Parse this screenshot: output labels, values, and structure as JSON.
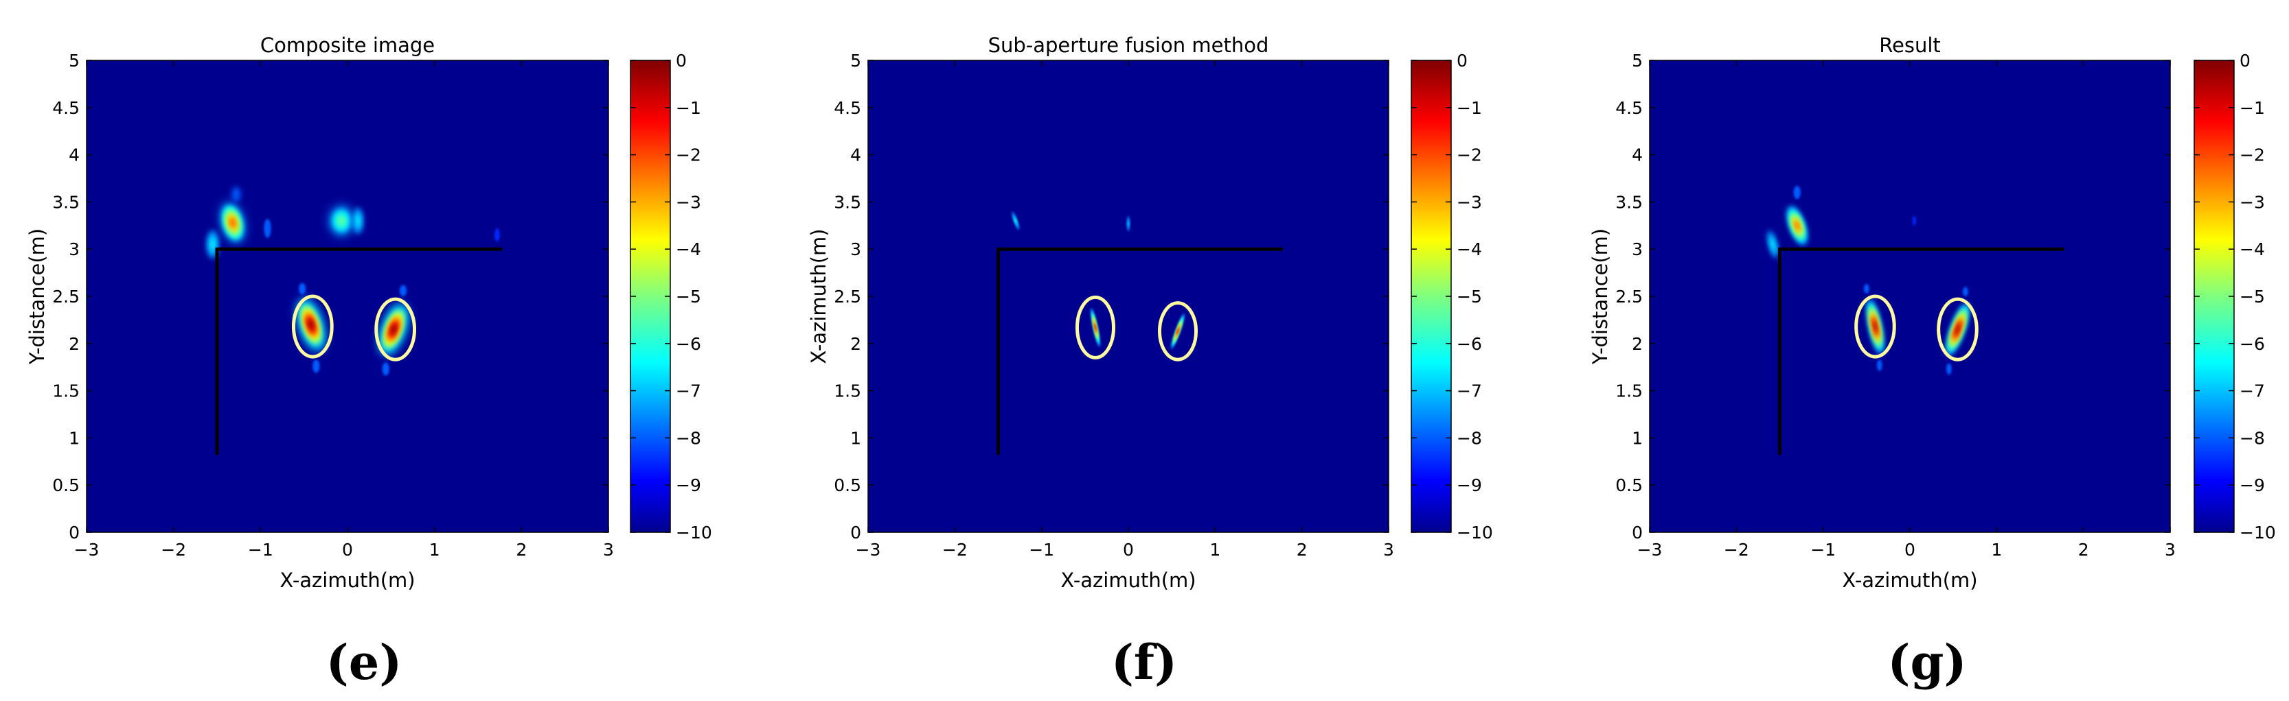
{
  "chart_data": [
    {
      "type": "heatmap",
      "panel_label": "(e)",
      "title": "Composite image",
      "xlabel": "X-azimuth(m)",
      "ylabel": "Y-distance(m)",
      "xlim": [
        -3,
        3
      ],
      "ylim": [
        0,
        5
      ],
      "x_ticks": [
        -3,
        -2,
        -1,
        0,
        1,
        2,
        3
      ],
      "y_ticks": [
        0,
        0.5,
        1,
        1.5,
        2,
        2.5,
        3,
        3.5,
        4,
        4.5,
        5
      ],
      "colorbar": {
        "min": -10,
        "max": 0,
        "ticks": [
          0,
          -1,
          -2,
          -3,
          -4,
          -5,
          -6,
          -7,
          -8,
          -9,
          -10
        ]
      },
      "wall_line": [
        [
          -1.5,
          0.82
        ],
        [
          -1.5,
          3.0
        ],
        [
          1.78,
          3.0
        ]
      ],
      "target_ellipses": [
        {
          "cx": -0.4,
          "cy": 2.18,
          "rx": 0.22,
          "ry": 0.32
        },
        {
          "cx": 0.55,
          "cy": 2.15,
          "rx": 0.22,
          "ry": 0.32
        }
      ],
      "blobs": [
        {
          "x": -1.32,
          "y": 3.28,
          "rx": 0.13,
          "ry": 0.22,
          "angle": -15,
          "level": -2
        },
        {
          "x": -1.55,
          "y": 3.05,
          "rx": 0.07,
          "ry": 0.15,
          "angle": 0,
          "level": -6
        },
        {
          "x": -1.28,
          "y": 3.58,
          "rx": 0.05,
          "ry": 0.08,
          "angle": 0,
          "level": -8
        },
        {
          "x": -0.92,
          "y": 3.22,
          "rx": 0.04,
          "ry": 0.1,
          "angle": 0,
          "level": -8
        },
        {
          "x": -0.07,
          "y": 3.3,
          "rx": 0.14,
          "ry": 0.16,
          "angle": 0,
          "level": -5
        },
        {
          "x": 0.12,
          "y": 3.3,
          "rx": 0.06,
          "ry": 0.14,
          "angle": 0,
          "level": -6
        },
        {
          "x": -0.42,
          "y": 2.2,
          "rx": 0.13,
          "ry": 0.29,
          "angle": -18,
          "level": 0
        },
        {
          "x": 0.53,
          "y": 2.15,
          "rx": 0.13,
          "ry": 0.29,
          "angle": 20,
          "level": 0
        },
        {
          "x": -0.36,
          "y": 1.76,
          "rx": 0.04,
          "ry": 0.07,
          "angle": 0,
          "level": -8
        },
        {
          "x": 0.44,
          "y": 1.73,
          "rx": 0.04,
          "ry": 0.07,
          "angle": 0,
          "level": -8
        },
        {
          "x": -0.52,
          "y": 2.58,
          "rx": 0.04,
          "ry": 0.06,
          "angle": 0,
          "level": -8
        },
        {
          "x": 0.64,
          "y": 2.56,
          "rx": 0.04,
          "ry": 0.06,
          "angle": 0,
          "level": -8
        },
        {
          "x": 1.72,
          "y": 3.15,
          "rx": 0.03,
          "ry": 0.07,
          "angle": 0,
          "level": -9
        }
      ]
    },
    {
      "type": "heatmap",
      "panel_label": "(f)",
      "title": "Sub-aperture fusion method",
      "xlabel": "X-azimuth(m)",
      "ylabel": "X-azimuth(m)",
      "xlim": [
        -3,
        3
      ],
      "ylim": [
        0,
        5
      ],
      "x_ticks": [
        -3,
        -2,
        -1,
        0,
        1,
        2,
        3
      ],
      "y_ticks": [
        0,
        0.5,
        1,
        1.5,
        2,
        2.5,
        3,
        3.5,
        4,
        4.5,
        5
      ],
      "colorbar": {
        "min": -10,
        "max": 0,
        "ticks": [
          0,
          -1,
          -2,
          -3,
          -4,
          -5,
          -6,
          -7,
          -8,
          -9,
          -10
        ]
      },
      "wall_line": [
        [
          -1.5,
          0.82
        ],
        [
          -1.5,
          3.0
        ],
        [
          1.78,
          3.0
        ]
      ],
      "target_ellipses": [
        {
          "cx": -0.38,
          "cy": 2.17,
          "rx": 0.21,
          "ry": 0.32
        },
        {
          "cx": 0.57,
          "cy": 2.13,
          "rx": 0.21,
          "ry": 0.3
        }
      ],
      "blobs": [
        {
          "x": -1.3,
          "y": 3.3,
          "rx": 0.02,
          "ry": 0.1,
          "angle": -20,
          "level": -6
        },
        {
          "x": 0.0,
          "y": 3.27,
          "rx": 0.015,
          "ry": 0.08,
          "angle": 0,
          "level": -7
        },
        {
          "x": -0.38,
          "y": 2.17,
          "rx": 0.025,
          "ry": 0.21,
          "angle": -12,
          "level": -1
        },
        {
          "x": 0.57,
          "y": 2.13,
          "rx": 0.025,
          "ry": 0.2,
          "angle": 20,
          "level": -1
        }
      ]
    },
    {
      "type": "heatmap",
      "panel_label": "(g)",
      "title": "Result",
      "xlabel": "X-azimuth(m)",
      "ylabel": "Y-distance(m)",
      "xlim": [
        -3,
        3
      ],
      "ylim": [
        0,
        5
      ],
      "x_ticks": [
        -3,
        -2,
        -1,
        0,
        1,
        2,
        3
      ],
      "y_ticks": [
        0,
        0.5,
        1,
        1.5,
        2,
        2.5,
        3,
        3.5,
        4,
        4.5,
        5
      ],
      "colorbar": {
        "min": -10,
        "max": 0,
        "ticks": [
          0,
          -1,
          -2,
          -3,
          -4,
          -5,
          -6,
          -7,
          -8,
          -9,
          -10
        ]
      },
      "wall_line": [
        [
          -1.5,
          0.82
        ],
        [
          -1.5,
          3.0
        ],
        [
          1.78,
          3.0
        ]
      ],
      "target_ellipses": [
        {
          "cx": -0.4,
          "cy": 2.18,
          "rx": 0.22,
          "ry": 0.32
        },
        {
          "cx": 0.55,
          "cy": 2.15,
          "rx": 0.22,
          "ry": 0.32
        }
      ],
      "blobs": [
        {
          "x": -1.3,
          "y": 3.25,
          "rx": 0.09,
          "ry": 0.22,
          "angle": -20,
          "level": -2
        },
        {
          "x": -1.58,
          "y": 3.05,
          "rx": 0.05,
          "ry": 0.15,
          "angle": -15,
          "level": -6
        },
        {
          "x": -1.3,
          "y": 3.6,
          "rx": 0.04,
          "ry": 0.07,
          "angle": 0,
          "level": -8
        },
        {
          "x": 0.05,
          "y": 3.3,
          "rx": 0.02,
          "ry": 0.05,
          "angle": 0,
          "level": -9
        },
        {
          "x": -0.4,
          "y": 2.18,
          "rx": 0.07,
          "ry": 0.3,
          "angle": -12,
          "level": 0
        },
        {
          "x": 0.55,
          "y": 2.15,
          "rx": 0.08,
          "ry": 0.3,
          "angle": 20,
          "level": 0
        },
        {
          "x": -0.35,
          "y": 1.77,
          "rx": 0.03,
          "ry": 0.06,
          "angle": 0,
          "level": -8
        },
        {
          "x": 0.45,
          "y": 1.73,
          "rx": 0.03,
          "ry": 0.06,
          "angle": 0,
          "level": -8
        },
        {
          "x": -0.5,
          "y": 2.58,
          "rx": 0.03,
          "ry": 0.05,
          "angle": 0,
          "level": -8
        },
        {
          "x": 0.64,
          "y": 2.55,
          "rx": 0.03,
          "ry": 0.05,
          "angle": 0,
          "level": -8
        }
      ]
    }
  ]
}
